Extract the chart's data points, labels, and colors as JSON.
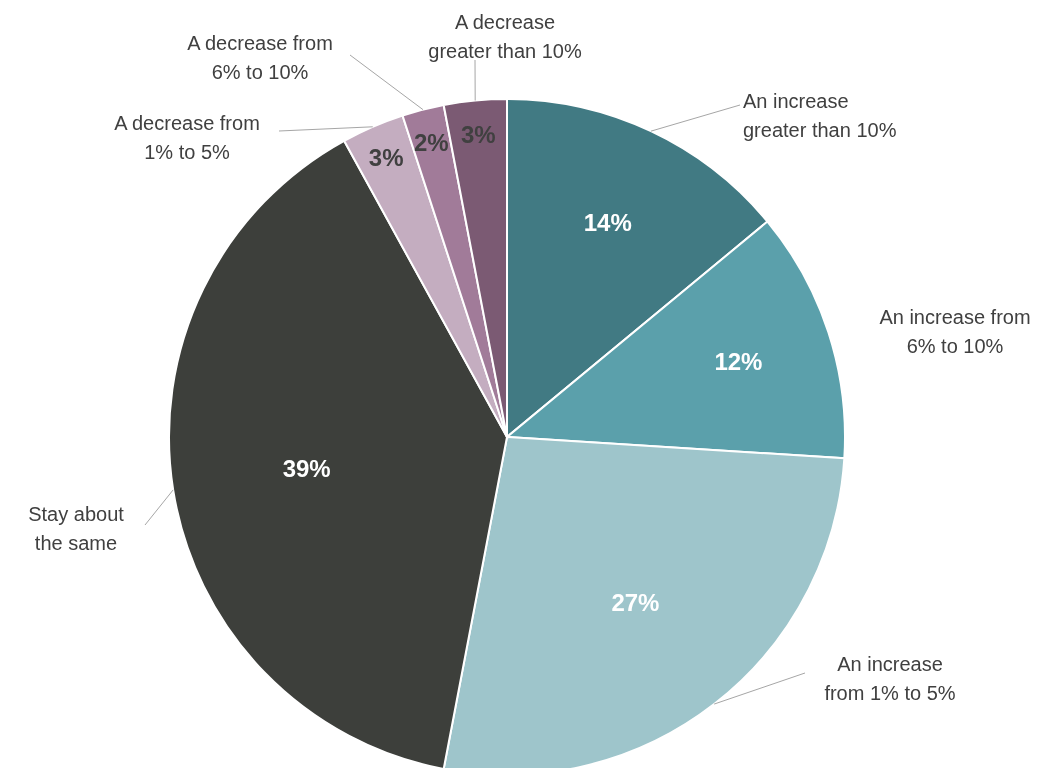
{
  "chart_data": {
    "type": "pie",
    "categories": [
      "An increase greater than 10%",
      "An increase from 6% to 10%",
      "An increase from 1% to 5%",
      "Stay about the same",
      "A decrease from 1% to 5%",
      "A decrease from 6% to 10%",
      "A decrease greater than 10%"
    ],
    "values": [
      14,
      12,
      27,
      39,
      3,
      2,
      3
    ],
    "colors": [
      "#417a83",
      "#5ba0ab",
      "#9ec5cb",
      "#3d3f3b",
      "#c4adc0",
      "#a17b99",
      "#7b5a73"
    ],
    "value_labels": [
      "14%",
      "12%",
      "27%",
      "39%",
      "3%",
      "2%",
      "3%"
    ]
  }
}
